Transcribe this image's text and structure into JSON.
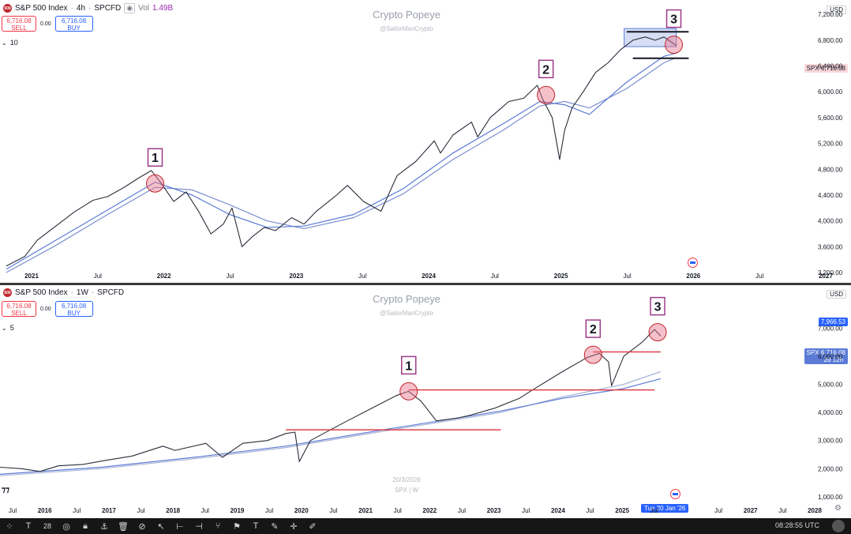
{
  "toolbar": {
    "icons": [
      "grid-icon",
      "text-icon",
      "number-icon",
      "eye-icon",
      "lock-icon",
      "anchor-icon",
      "trash-icon",
      "hide-icon",
      "cursor-icon",
      "ruler-icon",
      "measure-icon",
      "fork-icon",
      "flag-icon",
      "text-tool-icon",
      "brush-icon",
      "crosshair-icon",
      "pencil-icon"
    ],
    "font_size": "28",
    "time": "08:28:55 UTC"
  },
  "chart_data": [
    {
      "type": "line",
      "symbol_name": "S&P 500 Index",
      "interval": "4h",
      "source": "SPCFD",
      "vol_label": "Vol",
      "vol_value": "1.49B",
      "watermark": "Crypto Popeye",
      "watermark_handle": "@SailorManCrypto",
      "sell_price": "6,716.08",
      "sell_label": "SELL",
      "buy_price": "6,716.08",
      "buy_label": "BUY",
      "spread": "0.00",
      "indicators_count": "10",
      "currency": "USD",
      "last_price": "6,716.08",
      "last_symbol": "SPX",
      "y_ticks": [
        "7,200.00",
        "6,800.00",
        "6,400.00",
        "6,000.00",
        "5,600.00",
        "5,200.00",
        "4,800.00",
        "4,400.00",
        "4,000.00",
        "3,600.00",
        "3,200.00"
      ],
      "y_range": [
        3200,
        7300
      ],
      "x_ticks": [
        "2021",
        "Jul",
        "2022",
        "Jul",
        "2023",
        "Jul",
        "2024",
        "Jul",
        "2025",
        "Jul",
        "2026",
        "Jul",
        "2027"
      ],
      "x_range": [
        2020.75,
        2027.15
      ],
      "series": [
        {
          "name": "",
          "color": "#2a2e39",
          "x": [
            2020.8,
            2020.95,
            2021.05,
            2021.2,
            2021.35,
            2021.5,
            2021.62,
            2021.75,
            2021.88,
            2021.97,
            2022.05,
            2022.15,
            2022.25,
            2022.35,
            2022.45,
            2022.55,
            2022.62,
            2022.7,
            2022.78,
            2022.88,
            2022.97,
            2023.1,
            2023.2,
            2023.3,
            2023.45,
            2023.55,
            2023.68,
            2023.82,
            2023.95,
            2024.1,
            2024.25,
            2024.3,
            2024.4,
            2024.55,
            2024.6,
            2024.7,
            2024.85,
            2024.97,
            2025.08,
            2025.12,
            2025.2,
            2025.26,
            2025.3,
            2025.36,
            2025.45,
            2025.55,
            2025.65,
            2025.75,
            2025.85,
            2025.95,
            2026.03,
            2026.1,
            2026.2
          ],
          "values": [
            3300,
            3450,
            3700,
            3920,
            4140,
            4320,
            4380,
            4520,
            4680,
            4780,
            4580,
            4300,
            4450,
            4150,
            3800,
            3950,
            4200,
            3600,
            3750,
            3900,
            3850,
            4050,
            3950,
            4150,
            4380,
            4550,
            4300,
            4150,
            4700,
            4920,
            5240,
            5050,
            5330,
            5530,
            5300,
            5600,
            5850,
            5900,
            6100,
            5900,
            5600,
            4950,
            5400,
            5750,
            6000,
            6300,
            6450,
            6650,
            6800,
            6850,
            6800,
            6850,
            6716
          ]
        },
        {
          "name": "",
          "color": "#5b7bd6",
          "x": [
            2020.8,
            2021.2,
            2021.6,
            2022.0,
            2022.3,
            2022.6,
            2022.9,
            2023.2,
            2023.6,
            2024.0,
            2024.4,
            2024.8,
            2025.1,
            2025.3,
            2025.5,
            2025.8,
            2026.1,
            2026.2
          ],
          "values": [
            3250,
            3700,
            4150,
            4600,
            4400,
            4100,
            3900,
            3920,
            4100,
            4500,
            5050,
            5500,
            5850,
            5800,
            5650,
            6150,
            6550,
            6600
          ]
        },
        {
          "name": "",
          "color": "#7b8fcf",
          "x": [
            2020.8,
            2021.2,
            2021.6,
            2022.0,
            2022.3,
            2022.6,
            2022.9,
            2023.2,
            2023.6,
            2024.0,
            2024.4,
            2024.8,
            2025.1,
            2025.3,
            2025.5,
            2025.8,
            2026.1,
            2026.2
          ],
          "values": [
            3200,
            3620,
            4080,
            4520,
            4480,
            4250,
            4000,
            3880,
            4050,
            4420,
            4950,
            5400,
            5780,
            5850,
            5750,
            6050,
            6450,
            6530
          ]
        }
      ],
      "annotations": [
        {
          "label": "1",
          "x": 2022.0,
          "value": 4580
        },
        {
          "label": "2",
          "x": 2025.15,
          "value": 5950
        },
        {
          "label": "3",
          "x": 2026.18,
          "value": 6730
        }
      ],
      "range_lines": [
        {
          "x1": 2025.8,
          "x2": 2026.3,
          "value": 6930,
          "color": "#131722"
        },
        {
          "x1": 2025.85,
          "x2": 2026.3,
          "value": 6520,
          "color": "#131722"
        }
      ],
      "range_box": {
        "x1": 2025.78,
        "x2": 2026.2,
        "y1": 6700,
        "y2": 6980,
        "color": "#5b7bd6"
      }
    },
    {
      "type": "line",
      "symbol_name": "S&P 500 Index",
      "interval": "1W",
      "source": "SPCFD",
      "watermark": "Crypto Popeye",
      "watermark_handle": "@SailorManCrypto",
      "sell_price": "6,716.08",
      "sell_label": "SELL",
      "buy_price": "6,716.08",
      "buy_label": "BUY",
      "spread": "0.00",
      "indicators_count": "5",
      "currency": "USD",
      "last_price": "6,716.08",
      "last_symbol": "SPX",
      "countdown": "2d 12h",
      "high_label": "7,966.53",
      "footer_date": "20/3/2026",
      "footer_symbol": "SPX | W",
      "cursor_date": "Tue 20 Jan '26",
      "y_ticks": [
        "7,000.00",
        "6,000.00",
        "5,000.00",
        "4,000.00",
        "3,000.00",
        "2,000.00",
        "1,000.00"
      ],
      "y_range": [
        800,
        8300
      ],
      "x_ticks": [
        "Jul",
        "2016",
        "Jul",
        "2017",
        "Jul",
        "2018",
        "Jul",
        "2019",
        "Jul",
        "2020",
        "Jul",
        "2021",
        "Jul",
        "2022",
        "Jul",
        "2023",
        "Jul",
        "2024",
        "Jul",
        "2025",
        "Jul",
        "",
        "Jul",
        "2027",
        "Jul",
        "2028"
      ],
      "x_range": [
        2015.35,
        2028.4
      ],
      "series": [
        {
          "name": "",
          "color": "#2a2e39",
          "x": [
            2015.35,
            2015.7,
            2016.0,
            2016.3,
            2016.7,
            2017.0,
            2017.5,
            2018.0,
            2018.2,
            2018.7,
            2018.97,
            2019.3,
            2019.7,
            2020.0,
            2020.15,
            2020.22,
            2020.4,
            2020.7,
            2021.0,
            2021.4,
            2021.8,
            2022.0,
            2022.2,
            2022.45,
            2022.8,
            2023.0,
            2023.4,
            2023.8,
            2024.0,
            2024.5,
            2024.9,
            2025.1,
            2025.25,
            2025.3,
            2025.5,
            2025.8,
            2026.0,
            2026.1
          ],
          "values": [
            2050,
            2000,
            1900,
            2100,
            2150,
            2270,
            2450,
            2800,
            2650,
            2900,
            2400,
            2900,
            3000,
            3250,
            3300,
            2250,
            3000,
            3350,
            3700,
            4150,
            4600,
            4750,
            4400,
            3700,
            3800,
            3900,
            4150,
            4500,
            4780,
            5450,
            5950,
            6100,
            5800,
            4950,
            6000,
            6500,
            6950,
            6716
          ]
        },
        {
          "name": "",
          "color": "#5b7bd6",
          "x": [
            2015.35,
            2017.0,
            2018.5,
            2020.0,
            2021.5,
            2022.5,
            2023.5,
            2024.5,
            2025.5,
            2026.1
          ],
          "values": [
            1800,
            2050,
            2400,
            2800,
            3350,
            3700,
            4050,
            4500,
            4850,
            5200
          ]
        },
        {
          "name": "",
          "color": "#a9b4d6",
          "x": [
            2015.35,
            2017.0,
            2018.5,
            2020.0,
            2021.5,
            2022.5,
            2023.5,
            2024.5,
            2025.5,
            2026.1
          ],
          "values": [
            1750,
            2000,
            2350,
            2750,
            3300,
            3650,
            4000,
            4550,
            5000,
            5450
          ]
        }
      ],
      "annotations": [
        {
          "label": "1",
          "x": 2022.0,
          "value": 4750
        },
        {
          "label": "2",
          "x": 2025.0,
          "value": 6050
        },
        {
          "label": "3",
          "x": 2026.05,
          "value": 6850
        }
      ],
      "support_lines": [
        {
          "x1": 2020.0,
          "x2": 2023.5,
          "value": 3380,
          "color": "#e0404a"
        },
        {
          "x1": 2022.0,
          "x2": 2026.0,
          "value": 4800,
          "color": "#e0404a"
        },
        {
          "x1": 2025.0,
          "x2": 2026.1,
          "value": 6150,
          "color": "#e0404a"
        }
      ]
    }
  ]
}
